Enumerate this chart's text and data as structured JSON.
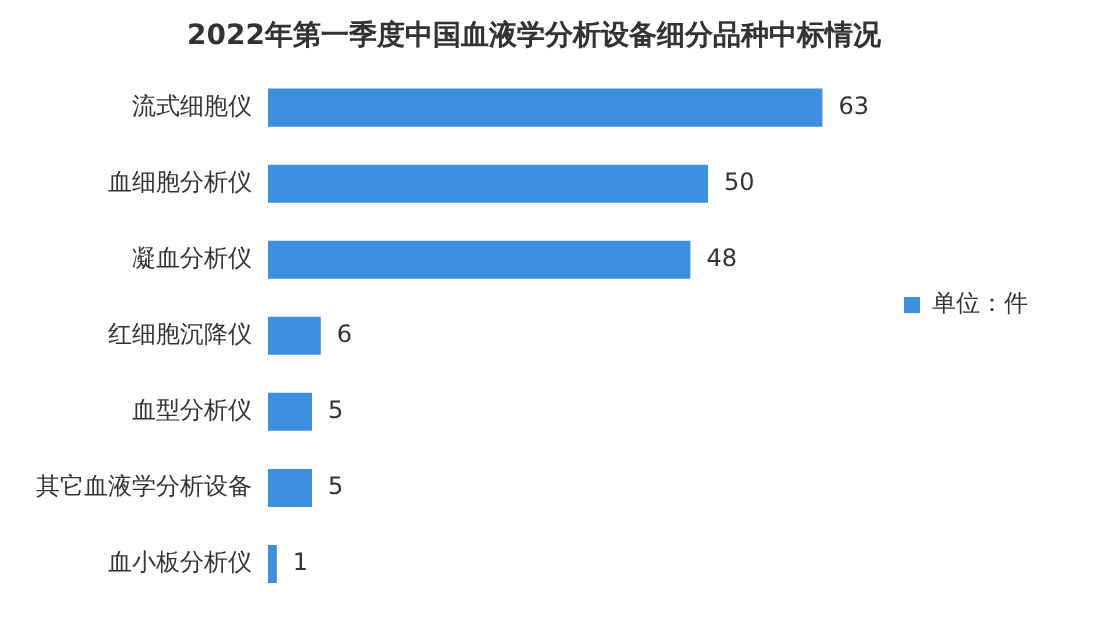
{
  "chart_data": {
    "type": "bar",
    "orientation": "horizontal",
    "title": "2022年第一季度中国血液学分析设备细分品种中标情况",
    "categories": [
      "流式细胞仪",
      "血细胞分析仪",
      "凝血分析仪",
      "红细胞沉降仪",
      "血型分析仪",
      "其它血液学分析设备",
      "血小板分析仪"
    ],
    "series": [
      {
        "name": "单位：件",
        "color": "#3d8fe0",
        "values": [
          63,
          50,
          48,
          6,
          5,
          5,
          1
        ]
      }
    ],
    "data_labels": true,
    "legend": "right",
    "grid": false,
    "tick_labels": "y"
  }
}
